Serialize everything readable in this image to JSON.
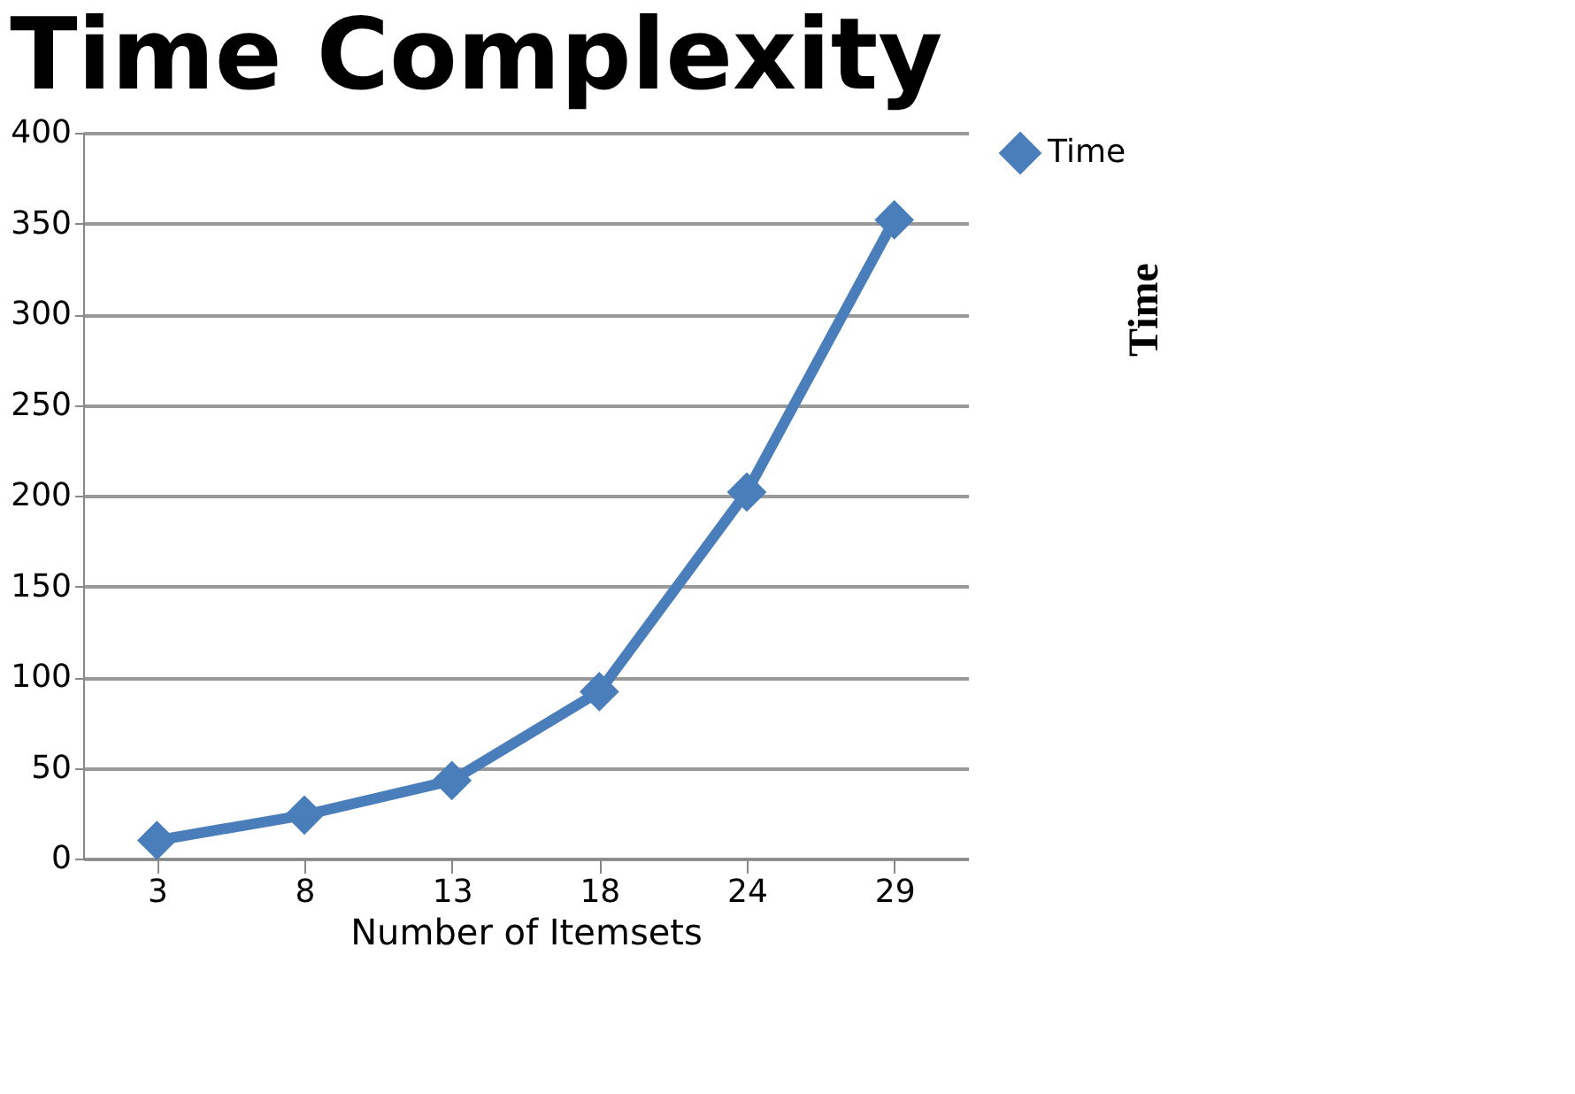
{
  "chart_data": {
    "type": "line",
    "title": "Time Complexity",
    "xlabel": "Number of Itemsets",
    "ylabel": "Time",
    "categories": [
      "3",
      "8",
      "13",
      "18",
      "24",
      "29"
    ],
    "series": [
      {
        "name": "Time",
        "color": "#4a7ebb",
        "values": [
          10,
          24,
          43,
          92,
          202,
          352
        ]
      }
    ],
    "ylim": [
      0,
      400
    ],
    "yticks": [
      0,
      50,
      100,
      150,
      200,
      250,
      300,
      350,
      400
    ],
    "grid": "y",
    "legend": "right",
    "marker": "diamond",
    "line_style": "solid"
  }
}
